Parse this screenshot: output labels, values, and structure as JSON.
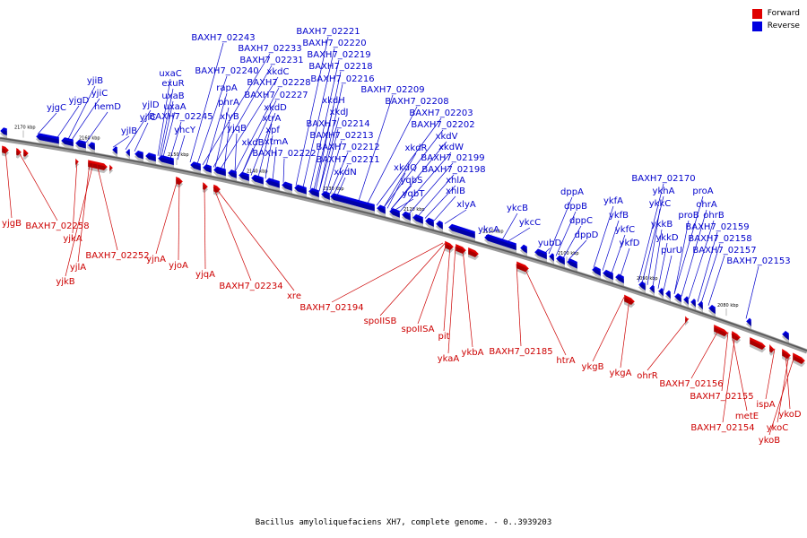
{
  "caption": "Bacillus amyloliquefaciens XH7, complete genome. - 0..3939203",
  "legend": [
    {
      "label": "Forward",
      "color": "#e00000"
    },
    {
      "label": "Reverse",
      "color": "#0000e0"
    }
  ],
  "colors": {
    "forward": "#e00000",
    "reverse": "#0000e0",
    "forward_text": "#cc0000",
    "reverse_text": "#0000cc"
  },
  "ticks": [
    {
      "label": "2170 kbp",
      "kbp": 2170
    },
    {
      "label": "2160 kbp",
      "kbp": 2160
    },
    {
      "label": "2150 kbp",
      "kbp": 2150
    },
    {
      "label": "2140 kbp",
      "kbp": 2140
    },
    {
      "label": "2130 kbp",
      "kbp": 2130
    },
    {
      "label": "2120 kbp",
      "kbp": 2120
    },
    {
      "label": "2110 kbp",
      "kbp": 2110
    },
    {
      "label": "2100 kbp",
      "kbp": 2100
    },
    {
      "label": "2090 kbp",
      "kbp": 2090
    },
    {
      "label": "2080 kbp",
      "kbp": 2080
    }
  ],
  "reverse_genes": [
    "BAXH7_02243",
    "BAXH7_02233",
    "BAXH7_02231",
    "xkdC",
    "BAXH7_02240",
    "rapA",
    "phrA",
    "xlyB",
    "BAXH7_02228",
    "BAXH7_02227",
    "xkdD",
    "xtrA",
    "xpf",
    "xtmA",
    "xkdB",
    "yjqB",
    "BAXH7_02222",
    "BAXH7_02221",
    "BAXH7_02220",
    "BAXH7_02219",
    "BAXH7_02218",
    "BAXH7_02216",
    "xkdH",
    "xkdJ",
    "BAXH7_02214",
    "BAXH7_02213",
    "BAXH7_02212",
    "BAXH7_02211",
    "xkdN",
    "BAXH7_02209",
    "BAXH7_02208",
    "BAXH7_02203",
    "BAXH7_02202",
    "xkdV",
    "xkdW",
    "BAXH7_02199",
    "BAXH7_02198",
    "xhlA",
    "xhlB",
    "xlyA",
    "xkdR",
    "xkdQ",
    "yqbS",
    "yqbT",
    "uxaC",
    "exuR",
    "uxaB",
    "uxaA",
    "yjiB",
    "yjiC",
    "yjgC",
    "yjgD",
    "hemD",
    "yjlD",
    "yjlC",
    "yjlB",
    "BAXH7_02245",
    "yhcY",
    "ykcA",
    "ykcB",
    "ykcC",
    "yubD",
    "dppA",
    "dppB",
    "dppC",
    "dppD",
    "ykfA",
    "ykfB",
    "ykfC",
    "ykfD",
    "BAXH7_02170",
    "ykhA",
    "proA",
    "ohrA",
    "ykkC",
    "proB",
    "ohrB",
    "ykkB",
    "ykkD",
    "BAXH7_02159",
    "BAXH7_02158",
    "purU",
    "BAXH7_02157",
    "BAXH7_02153"
  ],
  "forward_genes": [
    "yjgB",
    "BAXH7_02258",
    "yjkA",
    "yjlA",
    "yjkB",
    "BAXH7_02252",
    "yjnA",
    "yjoA",
    "yjqA",
    "BAXH7_02234",
    "xre",
    "BAXH7_02194",
    "spoIISB",
    "spoIISA",
    "pit",
    "ykaA",
    "ykbA",
    "BAXH7_02185",
    "htrA",
    "ykgB",
    "ykgA",
    "ohrR",
    "BAXH7_02156",
    "BAXH7_02155",
    "metE",
    "BAXH7_02154",
    "ispA",
    "ykoD",
    "ykoC",
    "ykoB"
  ]
}
